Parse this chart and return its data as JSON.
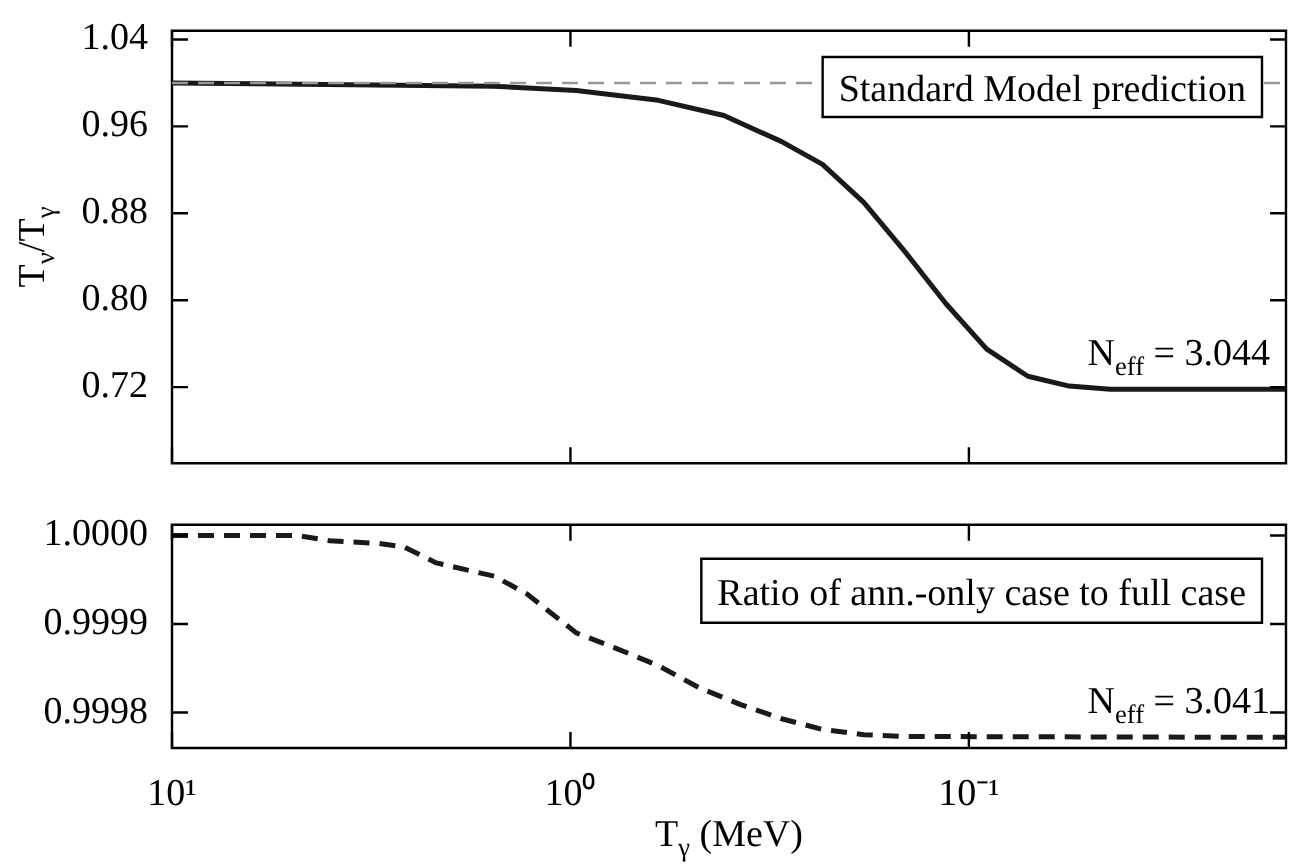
{
  "chart_data": [
    {
      "type": "line",
      "ylabel": "T$_{ν}$/T$_{γ}$",
      "log": "x",
      "marker": "none",
      "tick_labels": "y",
      "xlim": [
        10,
        0.016
      ],
      "xticks": [
        {
          "value": 10,
          "label": null
        },
        {
          "value": 1,
          "label": null
        },
        {
          "value": 0.1,
          "label": null
        }
      ],
      "ylim": [
        0.65,
        1.048
      ],
      "yticks": [
        {
          "value": 0.72,
          "label": "0.72"
        },
        {
          "value": 0.8,
          "label": "0.80"
        },
        {
          "value": 0.88,
          "label": "0.88"
        },
        {
          "value": 0.96,
          "label": "0.96"
        },
        {
          "value": 1.04,
          "label": "1.04"
        }
      ],
      "series": [
        {
          "color": "#1a1a1a",
          "line_style": "solid",
          "x": [
            10,
            1.555,
            0.967,
            0.602,
            0.412,
            0.295,
            0.233,
            0.1836,
            0.1449,
            0.1143,
            0.0902,
            0.0711,
            0.056,
            0.0442,
            0.016
          ],
          "values": [
            1.0,
            0.997,
            0.993,
            0.984,
            0.97,
            0.946,
            0.925,
            0.89,
            0.845,
            0.797,
            0.755,
            0.73,
            0.721,
            0.718,
            0.718
          ]
        }
      ],
      "ref_lines": [
        {
          "axis": "y",
          "value": 1.0,
          "label": "Standard Model prediction",
          "color": "#999999",
          "line_style": "dashed"
        }
      ],
      "annotations": [
        "N$_{eff}$ = 3.044"
      ]
    },
    {
      "type": "line",
      "xlabel": "T$_{γ}$ (MeV)",
      "log": "x",
      "marker": "none",
      "xlim": [
        10,
        0.016
      ],
      "xticks": [
        {
          "value": 10,
          "label": "10¹"
        },
        {
          "value": 1,
          "label": "10⁰"
        },
        {
          "value": 0.1,
          "label": "10⁻¹"
        }
      ],
      "ylim": [
        0.99976,
        1.000012
      ],
      "yticks": [
        {
          "value": 0.9998,
          "label": "0.9998"
        },
        {
          "value": 0.9999,
          "label": "0.9999"
        },
        {
          "value": 1,
          "label": "1.0000"
        }
      ],
      "series": [
        {
          "color": "#1a1a1a",
          "line_style": "dashed",
          "x": [
            10,
            4.86,
            4.02,
            3.02,
            2.62,
            2.17,
            1.555,
            1.286,
            0.967,
            0.763,
            0.602,
            0.475,
            0.374,
            0.295,
            0.233,
            0.1836,
            0.1449,
            0.016
          ],
          "values": [
            1.0,
            1.0,
            0.999994,
            0.999991,
            0.999987,
            0.999969,
            0.999954,
            0.999934,
            0.99989,
            0.999872,
            0.999853,
            0.999828,
            0.999809,
            0.999793,
            0.999781,
            0.999775,
            0.999773,
            0.999772
          ]
        }
      ],
      "annotations": [
        "Ratio of ann.-only case to full case",
        "N$_{eff}$ = 3.041"
      ]
    }
  ]
}
